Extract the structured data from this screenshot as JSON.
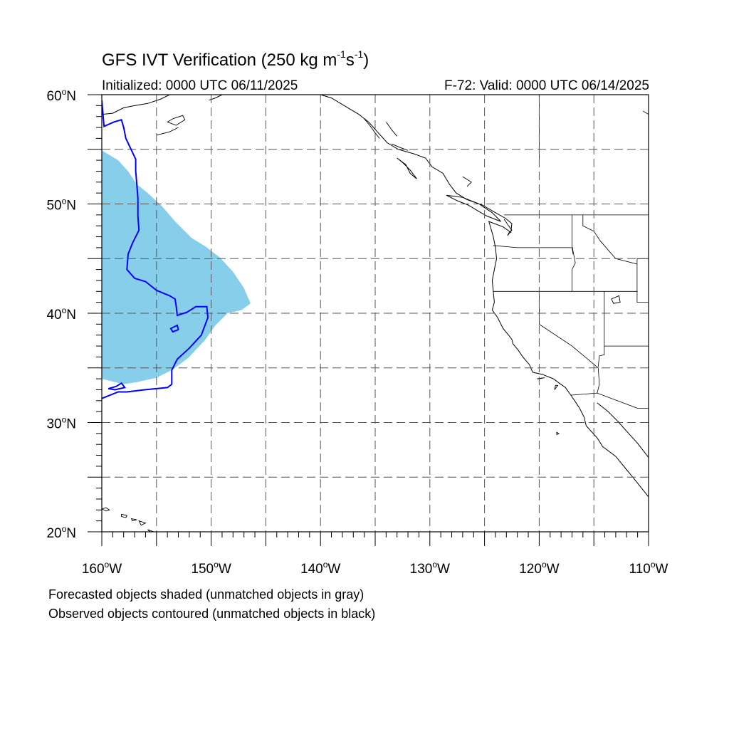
{
  "header": {
    "title_main": "GFS IVT Verification (250 kg m",
    "title_exp1": "-1",
    "title_mid": "s",
    "title_exp2": "-1",
    "title_end": ")",
    "initialized": "Initialized: 0000 UTC 06/11/2025",
    "valid": "F-72: Valid: 0000 UTC 06/14/2025"
  },
  "map": {
    "lon_range": [
      -160,
      -110
    ],
    "lat_range": [
      20,
      60
    ],
    "lon_labels": [
      {
        "lon": -160,
        "base": "160",
        "deg": "o",
        "hemi": "W"
      },
      {
        "lon": -150,
        "base": "150",
        "deg": "o",
        "hemi": "W"
      },
      {
        "lon": -140,
        "base": "140",
        "deg": "o",
        "hemi": "W"
      },
      {
        "lon": -130,
        "base": "130",
        "deg": "o",
        "hemi": "W"
      },
      {
        "lon": -120,
        "base": "120",
        "deg": "o",
        "hemi": "W"
      },
      {
        "lon": -110,
        "base": "110",
        "deg": "o",
        "hemi": "W"
      }
    ],
    "lat_labels": [
      {
        "lat": 60,
        "base": "60",
        "deg": "o",
        "hemi": "N"
      },
      {
        "lat": 50,
        "base": "50",
        "deg": "o",
        "hemi": "N"
      },
      {
        "lat": 40,
        "base": "40",
        "deg": "o",
        "hemi": "N"
      },
      {
        "lat": 30,
        "base": "30",
        "deg": "o",
        "hemi": "N"
      },
      {
        "lat": 20,
        "base": "20",
        "deg": "o",
        "hemi": "N"
      }
    ],
    "gridline_lons": [
      -155,
      -150,
      -145,
      -140,
      -135,
      -130,
      -125,
      -120,
      -115
    ],
    "gridline_lats": [
      55,
      50,
      45,
      40,
      35,
      30,
      25
    ],
    "forecast_color": "#87ceeb",
    "observed_color": "#0000ff",
    "coast_color": "#000000",
    "forecast_object": [
      [
        -160,
        54.9
      ],
      [
        -159.5,
        54.6
      ],
      [
        -158.5,
        54.0
      ],
      [
        -157.6,
        53.0
      ],
      [
        -156.8,
        51.8
      ],
      [
        -155.8,
        51.0
      ],
      [
        -154.5,
        49.8
      ],
      [
        -153.2,
        48.3
      ],
      [
        -151.8,
        46.9
      ],
      [
        -150.5,
        46.1
      ],
      [
        -149.2,
        45.1
      ],
      [
        -148.0,
        43.8
      ],
      [
        -147.0,
        42.3
      ],
      [
        -146.4,
        40.9
      ],
      [
        -147.2,
        40.3
      ],
      [
        -148.5,
        40.0
      ],
      [
        -149.6,
        38.9
      ],
      [
        -150.6,
        37.5
      ],
      [
        -152.1,
        35.9
      ],
      [
        -153.6,
        34.8
      ],
      [
        -155.0,
        34.1
      ],
      [
        -156.8,
        33.7
      ],
      [
        -158.0,
        33.5
      ],
      [
        -160,
        34.0
      ]
    ],
    "observed_object": [
      [
        -160,
        59.5
      ],
      [
        -159.8,
        57.1
      ],
      [
        -158.9,
        57.5
      ],
      [
        -158.2,
        57.7
      ],
      [
        -158.0,
        57.0
      ],
      [
        -157.8,
        56.0
      ],
      [
        -156.9,
        54.1
      ],
      [
        -156.9,
        53.0
      ],
      [
        -156.8,
        51.8
      ],
      [
        -156.7,
        50.5
      ],
      [
        -156.7,
        48.9
      ],
      [
        -156.6,
        47.6
      ],
      [
        -157.2,
        46.4
      ],
      [
        -157.6,
        45.4
      ],
      [
        -157.7,
        44.0
      ],
      [
        -157.0,
        43.2
      ],
      [
        -156.0,
        42.9
      ],
      [
        -155.0,
        42.1
      ],
      [
        -153.8,
        41.6
      ],
      [
        -153.3,
        41.3
      ],
      [
        -153.2,
        40.7
      ],
      [
        -153.1,
        39.8
      ],
      [
        -152.2,
        40.1
      ],
      [
        -151.4,
        40.6
      ],
      [
        -150.4,
        40.6
      ],
      [
        -150.3,
        39.6
      ],
      [
        -150.9,
        38.0
      ],
      [
        -152.0,
        36.8
      ],
      [
        -153.1,
        35.8
      ],
      [
        -153.6,
        34.8
      ],
      [
        -153.6,
        33.5
      ],
      [
        -154.0,
        33.2
      ],
      [
        -156.1,
        33.0
      ],
      [
        -157.7,
        32.8
      ],
      [
        -158.5,
        32.8
      ],
      [
        -160,
        32.2
      ]
    ],
    "observed_small_a": [
      [
        -159.4,
        33.1
      ],
      [
        -158.7,
        33.3
      ],
      [
        -158.2,
        33.6
      ],
      [
        -157.9,
        33.2
      ],
      [
        -158.8,
        33.0
      ]
    ],
    "observed_small_b": [
      [
        -153.7,
        38.6
      ],
      [
        -153.1,
        38.9
      ],
      [
        -153.0,
        38.5
      ],
      [
        -153.5,
        38.3
      ]
    ],
    "coast_lines": [
      [
        [
          -160,
          58.2
        ],
        [
          -159.0,
          58.3
        ],
        [
          -158.0,
          58.8
        ],
        [
          -157.0,
          59.0
        ],
        [
          -155.8,
          59.2
        ],
        [
          -154.6,
          59.6
        ],
        [
          -153.8,
          60.0
        ]
      ],
      [
        [
          -150.2,
          59.5
        ],
        [
          -149.6,
          59.7
        ],
        [
          -149.0,
          60.0
        ]
      ],
      [
        [
          -140,
          60.0
        ],
        [
          -139.0,
          59.7
        ],
        [
          -137.5,
          58.8
        ],
        [
          -136.5,
          58.2
        ],
        [
          -135.6,
          57.5
        ],
        [
          -134.8,
          56.6
        ],
        [
          -133.9,
          55.6
        ],
        [
          -132.9,
          55.0
        ],
        [
          -131.5,
          54.6
        ],
        [
          -130.4,
          54.2
        ],
        [
          -129.8,
          53.4
        ],
        [
          -128.8,
          52.8
        ],
        [
          -128.2,
          51.8
        ],
        [
          -127.6,
          51.0
        ],
        [
          -126.6,
          50.4
        ],
        [
          -125.2,
          49.9
        ],
        [
          -124.0,
          49.2
        ],
        [
          -123.1,
          48.7
        ],
        [
          -122.5,
          48.2
        ],
        [
          -122.6,
          47.4
        ],
        [
          -123.3,
          47.9
        ],
        [
          -124.6,
          48.4
        ],
        [
          -124.2,
          47.0
        ],
        [
          -124.0,
          46.0
        ],
        [
          -123.9,
          45.0
        ],
        [
          -124.1,
          44.0
        ],
        [
          -124.3,
          43.0
        ],
        [
          -124.2,
          42.0
        ],
        [
          -124.1,
          41.0
        ],
        [
          -124.3,
          40.3
        ],
        [
          -123.8,
          39.6
        ],
        [
          -123.3,
          38.6
        ],
        [
          -122.8,
          38.0
        ],
        [
          -122.5,
          37.6
        ],
        [
          -122.4,
          37.2
        ],
        [
          -121.9,
          36.6
        ],
        [
          -121.5,
          36.0
        ],
        [
          -120.9,
          35.3
        ],
        [
          -120.6,
          34.6
        ],
        [
          -119.7,
          34.4
        ],
        [
          -118.7,
          34.0
        ],
        [
          -118.3,
          33.7
        ],
        [
          -117.6,
          33.2
        ],
        [
          -117.1,
          32.5
        ],
        [
          -116.7,
          31.9
        ],
        [
          -116.3,
          31.3
        ],
        [
          -115.9,
          30.5
        ],
        [
          -115.7,
          29.7
        ],
        [
          -114.7,
          28.6
        ],
        [
          -114.2,
          27.8
        ],
        [
          -113.0,
          26.9
        ],
        [
          -112.1,
          25.8
        ],
        [
          -111.2,
          24.7
        ],
        [
          -110.0,
          23.2
        ]
      ],
      [
        [
          -110,
          26.8
        ],
        [
          -111.0,
          28.1
        ],
        [
          -112.0,
          29.2
        ],
        [
          -112.8,
          30.1
        ],
        [
          -113.7,
          31.0
        ],
        [
          -114.7,
          31.8
        ]
      ],
      [
        [
          -128.5,
          50.8
        ],
        [
          -127.5,
          50.3
        ],
        [
          -126.5,
          49.9
        ],
        [
          -125.5,
          49.3
        ],
        [
          -124.8,
          48.9
        ],
        [
          -123.5,
          48.4
        ],
        [
          -124.3,
          49.2
        ],
        [
          -125.5,
          50.0
        ],
        [
          -127.0,
          50.6
        ],
        [
          -128.5,
          50.8
        ]
      ],
      [
        [
          -133.0,
          54.2
        ],
        [
          -132.2,
          53.6
        ],
        [
          -131.8,
          52.8
        ],
        [
          -131.2,
          52.3
        ],
        [
          -131.8,
          53.1
        ],
        [
          -132.5,
          53.8
        ],
        [
          -133.0,
          54.2
        ]
      ]
    ],
    "border_lines": [
      [
        [
          -123.2,
          49.0
        ],
        [
          -110,
          49.0
        ]
      ],
      [
        [
          -124.2,
          46.2
        ],
        [
          -122.0,
          46.0
        ],
        [
          -119.5,
          46.0
        ],
        [
          -117.0,
          46.0
        ],
        [
          -116.9,
          45.4
        ]
      ],
      [
        [
          -117.0,
          49.0
        ],
        [
          -117.0,
          46.2
        ],
        [
          -116.7,
          44.6
        ],
        [
          -117.0,
          44.0
        ],
        [
          -117.0,
          42.0
        ]
      ],
      [
        [
          -124.2,
          42.0
        ],
        [
          -117.0,
          42.0
        ],
        [
          -111.0,
          42.0
        ]
      ],
      [
        [
          -120.0,
          42.0
        ],
        [
          -120.0,
          39.0
        ],
        [
          -117.0,
          37.0
        ],
        [
          -114.6,
          35.0
        ],
        [
          -114.5,
          33.5
        ],
        [
          -114.7,
          32.7
        ]
      ],
      [
        [
          -117.1,
          32.5
        ],
        [
          -114.7,
          32.7
        ],
        [
          -111.0,
          31.3
        ],
        [
          -110,
          31.3
        ]
      ],
      [
        [
          -114.05,
          42.0
        ],
        [
          -114.05,
          37.0
        ],
        [
          -114.05,
          36.2
        ],
        [
          -114.5,
          36.1
        ],
        [
          -114.6,
          35.1
        ]
      ],
      [
        [
          -114.05,
          37.0
        ],
        [
          -110,
          37.0
        ]
      ],
      [
        [
          -111.05,
          45.0
        ],
        [
          -111.05,
          41.0
        ],
        [
          -110,
          41.0
        ]
      ],
      [
        [
          -116.0,
          49.0
        ],
        [
          -116.0,
          48.0
        ],
        [
          -115.0,
          47.5
        ],
        [
          -114.4,
          46.6
        ],
        [
          -113.0,
          45.0
        ],
        [
          -111.05,
          44.5
        ]
      ],
      [
        [
          -111.05,
          45.0
        ],
        [
          -110,
          45.0
        ]
      ],
      [
        [
          -110,
          58.2
        ],
        [
          -110.5,
          58.5
        ]
      ],
      [
        [
          -120.0,
          60.0
        ],
        [
          -120.0,
          54.0
        ]
      ]
    ],
    "islands": [
      [
        [
          -160.0,
          22.1
        ],
        [
          -159.6,
          22.2
        ],
        [
          -159.3,
          22.0
        ],
        [
          -159.6,
          21.9
        ],
        [
          -160.0,
          22.1
        ]
      ],
      [
        [
          -158.2,
          21.6
        ],
        [
          -157.7,
          21.5
        ],
        [
          -157.8,
          21.3
        ],
        [
          -158.2,
          21.4
        ],
        [
          -158.2,
          21.6
        ]
      ],
      [
        [
          -157.3,
          21.2
        ],
        [
          -156.8,
          21.1
        ],
        [
          -157.2,
          21.0
        ],
        [
          -157.3,
          21.2
        ]
      ],
      [
        [
          -156.6,
          21.0
        ],
        [
          -156.0,
          20.8
        ],
        [
          -156.4,
          20.6
        ],
        [
          -156.6,
          21.0
        ]
      ],
      [
        [
          -155.8,
          20.2
        ],
        [
          -155.0,
          19.9
        ],
        [
          -155.6,
          20.0
        ],
        [
          -155.8,
          20.2
        ]
      ],
      [
        [
          -118.6,
          33.0
        ],
        [
          -118.3,
          33.4
        ],
        [
          -118.5,
          33.4
        ],
        [
          -118.6,
          33.0
        ]
      ],
      [
        [
          -120.2,
          34.0
        ],
        [
          -119.5,
          34.1
        ],
        [
          -120.0,
          34.0
        ]
      ],
      [
        [
          -118.4,
          29.1
        ],
        [
          -118.2,
          29.0
        ],
        [
          -118.4,
          28.9
        ]
      ],
      [
        [
          -113.4,
          41.3
        ],
        [
          -112.7,
          41.6
        ],
        [
          -112.6,
          41.0
        ],
        [
          -113.2,
          40.9
        ],
        [
          -113.4,
          41.3
        ]
      ]
    ],
    "fine_coast_bits": [
      [
        [
          -154.0,
          57.5
        ],
        [
          -153.5,
          57.8
        ],
        [
          -152.6,
          58.1
        ],
        [
          -152.4,
          57.7
        ],
        [
          -153.2,
          57.2
        ],
        [
          -154.0,
          57.5
        ]
      ],
      [
        [
          -155.0,
          56.3
        ],
        [
          -153.8,
          56.6
        ],
        [
          -153.0,
          57.0
        ]
      ],
      [
        [
          -136.0,
          57.8
        ],
        [
          -135.5,
          57.2
        ],
        [
          -135.0,
          56.5
        ],
        [
          -134.6,
          56.0
        ]
      ],
      [
        [
          -134.0,
          57.5
        ],
        [
          -133.5,
          56.8
        ],
        [
          -133.0,
          56.2
        ]
      ],
      [
        [
          -133.5,
          55.5
        ],
        [
          -132.8,
          55.2
        ],
        [
          -132.0,
          54.9
        ]
      ],
      [
        [
          -127.0,
          52.5
        ],
        [
          -126.2,
          52.0
        ],
        [
          -126.6,
          51.6
        ]
      ],
      [
        [
          -123.2,
          48.6
        ],
        [
          -122.8,
          48.0
        ],
        [
          -122.5,
          47.6
        ],
        [
          -122.9,
          47.1
        ],
        [
          -122.7,
          47.5
        ]
      ]
    ]
  }
}
